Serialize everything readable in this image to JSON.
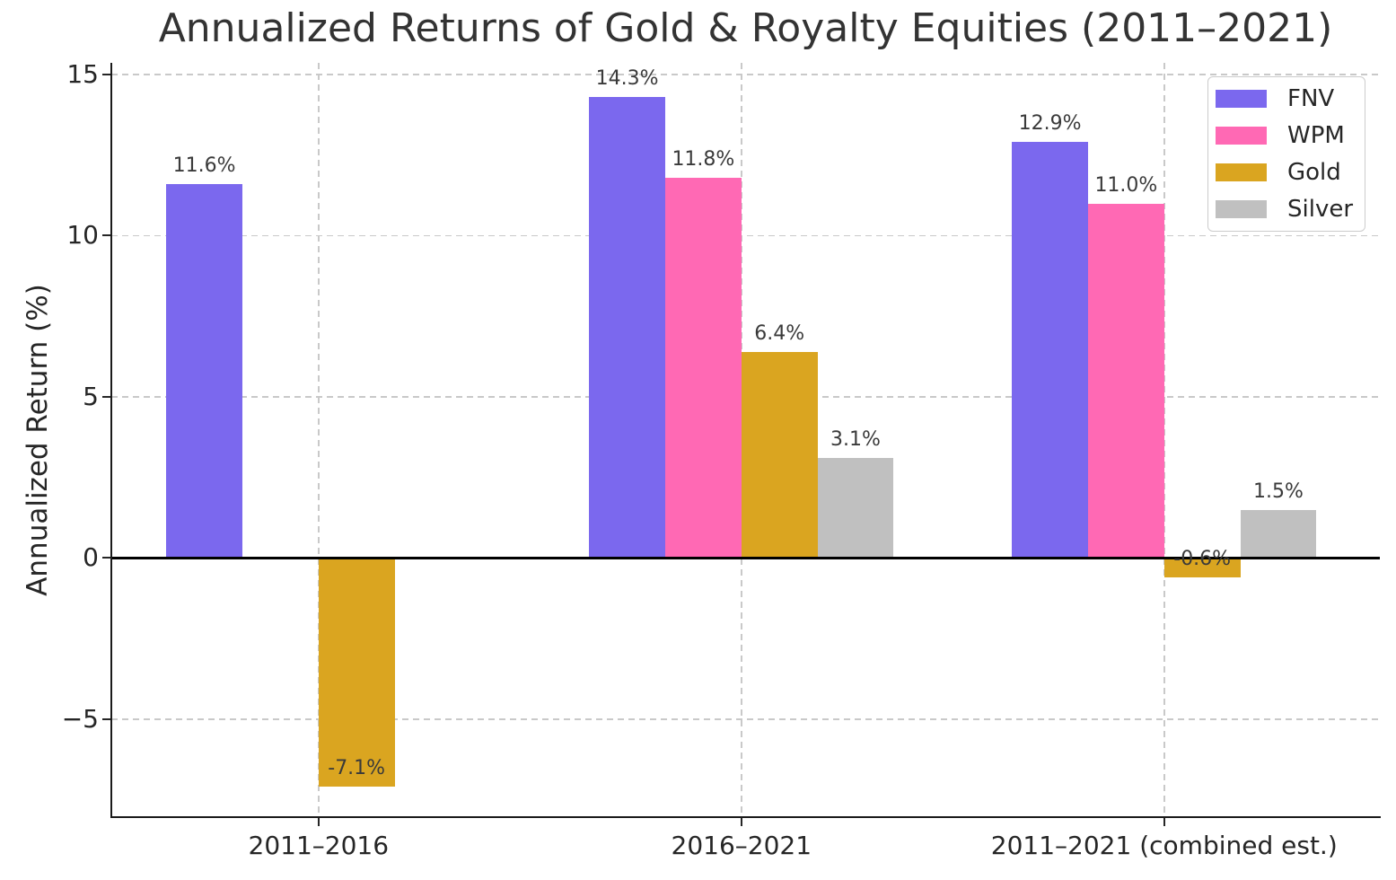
{
  "chart_data": {
    "type": "bar",
    "title": "Annualized Returns of Gold & Royalty Equities (2011–2021)",
    "xlabel": "",
    "ylabel": "Annualized Return (%)",
    "categories": [
      "2011–2016",
      "2016–2021",
      "2011–2021 (combined est.)"
    ],
    "series": [
      {
        "name": "FNV",
        "color": "#7B68EE",
        "values": [
          11.6,
          14.3,
          12.9
        ]
      },
      {
        "name": "WPM",
        "color": "#FF69B4",
        "values": [
          null,
          11.8,
          11.0
        ]
      },
      {
        "name": "Gold",
        "color": "#DAA520",
        "values": [
          -7.1,
          6.4,
          -0.6
        ]
      },
      {
        "name": "Silver",
        "color": "#C0C0C0",
        "values": [
          null,
          3.1,
          1.5
        ]
      }
    ],
    "value_label_format": "{v:.1f}%",
    "value_labels_shown": [
      "11.6%",
      "-7.1%",
      "14.3%",
      "11.8%",
      "6.4%",
      "3.1%",
      "12.9%",
      "11.0%",
      "-0.6%",
      "1.5%"
    ],
    "yticks": [
      {
        "value": 15,
        "label": "15"
      },
      {
        "value": 10,
        "label": "10"
      },
      {
        "value": 5,
        "label": "5"
      },
      {
        "value": 0,
        "label": "0"
      },
      {
        "value": -5,
        "label": "−5"
      }
    ],
    "ylim": [
      -8.04,
      15.36
    ],
    "xlim": [
      -0.49,
      2.51
    ],
    "bar_width": 0.18,
    "grid": true,
    "grid_style": "dashed",
    "zero_line": true,
    "legend_position": "upper right",
    "colors": {
      "grid": "#c9c9c9",
      "text": "#262626",
      "title": "#333333",
      "value_label": "#3a3a3a",
      "zero_line": "#000000"
    }
  }
}
